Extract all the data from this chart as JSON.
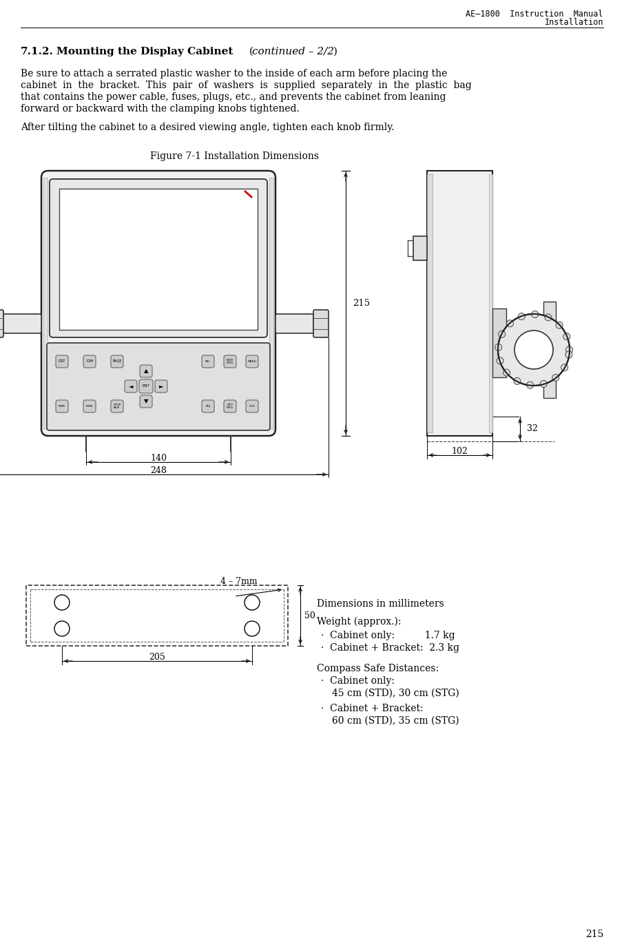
{
  "header_line1": "AE–1800  Instruction  Manual",
  "header_line2": "Installation",
  "section_title_bold": "7.1.2.   Mounting the Display Cabinet",
  "section_title_italic": "(continued – 2/2)",
  "para1_line1": "Be sure to attach a serrated plastic washer to the inside of each arm before placing the",
  "para1_line2": "cabinet  in  the  bracket.  This  pair  of  washers  is  supplied  separately  in  the  plastic  bag",
  "para1_line3": "that contains the power cable, fuses, plugs, etc., and prevents the cabinet from leaning",
  "para1_line4": "forward or backward with the clamping knobs tightened.",
  "para2": "After tilting the cabinet to a desired viewing angle, tighten each knob firmly.",
  "figure_caption": "Figure 7-1 Installation Dimensions",
  "dim_label": "Dimensions in millimeters",
  "weight_title": "Weight (approx.):",
  "weight1": "Cabinet only:          1.7 kg",
  "weight2": "Cabinet + Bracket:  2.3 kg",
  "compass_title": "Compass Safe Distances:",
  "compass1": "Cabinet only:",
  "compass2": "45 cm (STD), 30 cm (STG)",
  "compass3": "Cabinet + Bracket:",
  "compass4": "60 cm (STD), 35 cm (STG)",
  "dim_215": "215",
  "dim_140": "140",
  "dim_248": "248",
  "dim_32": "32",
  "dim_102": "102",
  "dim_50": "50",
  "dim_205": "205",
  "dim_4_7mm": "4 – 7mm",
  "page_num": "215",
  "bg_color": "#ffffff",
  "text_color": "#000000"
}
